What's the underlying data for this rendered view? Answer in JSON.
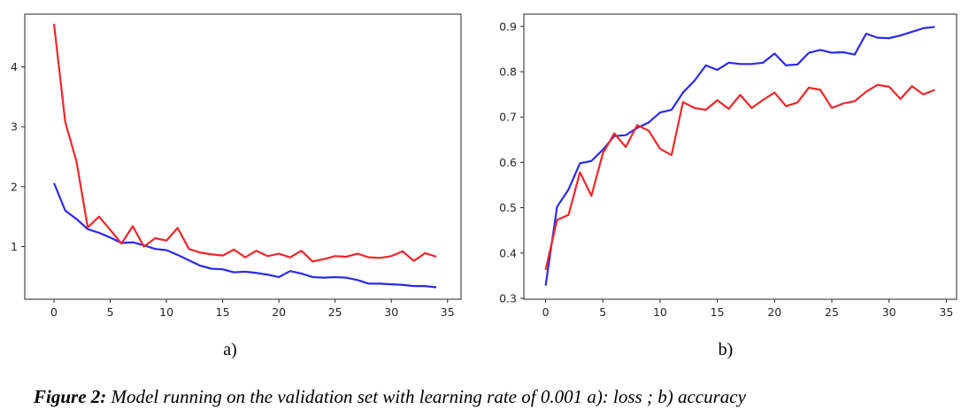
{
  "colors": {
    "train": "#2a2af0",
    "validation": "#f0262a",
    "axis": "#262626"
  },
  "chart_data": [
    {
      "type": "line",
      "panel_label": "a)",
      "xlim": [
        -2.6,
        36.2
      ],
      "ylim": [
        0.12,
        4.88
      ],
      "xticks": [
        0,
        5,
        10,
        15,
        20,
        25,
        30,
        35
      ],
      "yticks": [
        1,
        2,
        3,
        4
      ],
      "grid": false,
      "x": [
        0,
        1,
        2,
        3,
        4,
        5,
        6,
        7,
        8,
        9,
        10,
        11,
        12,
        13,
        14,
        15,
        16,
        17,
        18,
        19,
        20,
        21,
        22,
        23,
        24,
        25,
        26,
        27,
        28,
        29,
        30,
        31,
        32,
        33,
        34
      ],
      "series": [
        {
          "color": "blue",
          "values": [
            2.06,
            1.6,
            1.46,
            1.29,
            1.23,
            1.15,
            1.06,
            1.07,
            1.02,
            0.96,
            0.94,
            0.86,
            0.77,
            0.68,
            0.63,
            0.62,
            0.57,
            0.58,
            0.56,
            0.53,
            0.49,
            0.59,
            0.55,
            0.49,
            0.48,
            0.49,
            0.48,
            0.44,
            0.38,
            0.38,
            0.37,
            0.36,
            0.34,
            0.34,
            0.32
          ]
        },
        {
          "color": "red",
          "values": [
            4.72,
            3.08,
            2.42,
            1.32,
            1.5,
            1.28,
            1.05,
            1.34,
            1.0,
            1.14,
            1.1,
            1.31,
            0.96,
            0.9,
            0.87,
            0.85,
            0.95,
            0.82,
            0.93,
            0.84,
            0.88,
            0.82,
            0.93,
            0.75,
            0.79,
            0.84,
            0.83,
            0.88,
            0.82,
            0.81,
            0.84,
            0.92,
            0.76,
            0.89,
            0.83
          ]
        }
      ]
    },
    {
      "type": "line",
      "panel_label": "b)",
      "xlim": [
        -1.9,
        35.9
      ],
      "ylim": [
        0.298,
        0.927
      ],
      "xticks": [
        0,
        5,
        10,
        15,
        20,
        25,
        30,
        35
      ],
      "yticks": [
        0.3,
        0.4,
        0.5,
        0.6,
        0.7,
        0.8,
        0.9
      ],
      "grid": false,
      "x": [
        0,
        1,
        2,
        3,
        4,
        5,
        6,
        7,
        8,
        9,
        10,
        11,
        12,
        13,
        14,
        15,
        16,
        17,
        18,
        19,
        20,
        21,
        22,
        23,
        24,
        25,
        26,
        27,
        28,
        29,
        30,
        31,
        32,
        33,
        34
      ],
      "series": [
        {
          "color": "blue",
          "values": [
            0.328,
            0.502,
            0.54,
            0.598,
            0.603,
            0.628,
            0.658,
            0.66,
            0.676,
            0.688,
            0.71,
            0.716,
            0.754,
            0.78,
            0.814,
            0.804,
            0.82,
            0.817,
            0.817,
            0.82,
            0.84,
            0.814,
            0.816,
            0.842,
            0.848,
            0.842,
            0.843,
            0.838,
            0.884,
            0.875,
            0.874,
            0.88,
            0.888,
            0.896,
            0.899
          ]
        },
        {
          "color": "red",
          "values": [
            0.363,
            0.473,
            0.484,
            0.578,
            0.526,
            0.62,
            0.664,
            0.634,
            0.682,
            0.67,
            0.63,
            0.616,
            0.733,
            0.72,
            0.716,
            0.737,
            0.718,
            0.749,
            0.72,
            0.738,
            0.754,
            0.724,
            0.732,
            0.765,
            0.76,
            0.72,
            0.73,
            0.735,
            0.756,
            0.771,
            0.767,
            0.74,
            0.768,
            0.75,
            0.76
          ]
        }
      ]
    }
  ],
  "caption": {
    "figure_label": "Figure 2:",
    "text": " Model running on the validation set with learning rate of 0.001 a): loss ; b) accuracy"
  }
}
